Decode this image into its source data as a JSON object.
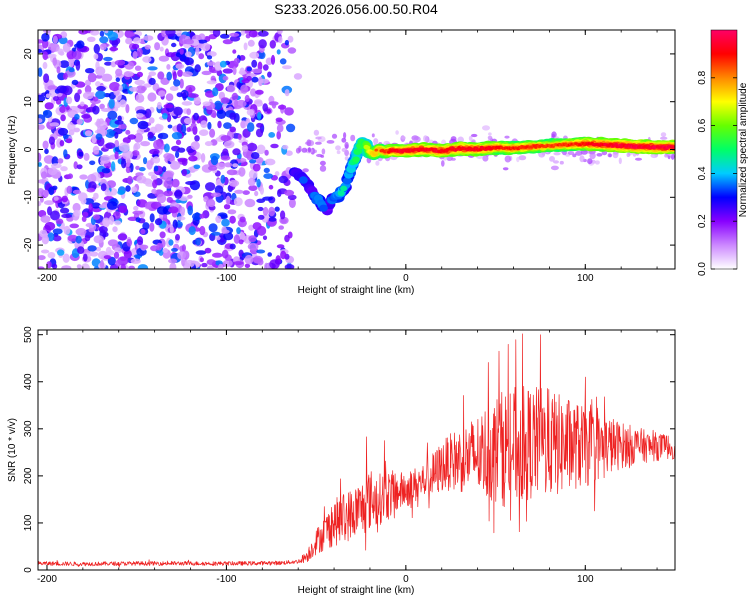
{
  "title": "S233.2026.056.00.50.R04",
  "chart_data": [
    {
      "type": "heatmap",
      "name": "spectrogram",
      "xlabel": "Height of straight line (km)",
      "ylabel": "Frequency (Hz)",
      "xlim": [
        -205,
        150
      ],
      "ylim": [
        -25,
        25
      ],
      "xticks": [
        -200,
        -100,
        0,
        100
      ],
      "xtick_labels": [
        "-200",
        "-100",
        "0",
        "100"
      ],
      "yticks": [
        -20,
        -10,
        0,
        10,
        20
      ],
      "ytick_labels": [
        "-20",
        "-10",
        "0",
        "10",
        "20"
      ],
      "colorbar": {
        "label": "Normalized spectral amplitude",
        "range": [
          0,
          1
        ],
        "ticks": [
          0,
          0.2,
          0.4,
          0.6,
          0.8
        ],
        "tick_labels": [
          "0.0",
          "0.2",
          "0.4",
          "0.6",
          "0.8"
        ],
        "colors": [
          "#ffffff",
          "#cc88ff",
          "#8800ff",
          "#0000ff",
          "#00ccff",
          "#00ff66",
          "#66ff00",
          "#ffff00",
          "#ff8800",
          "#ff0000",
          "#ff0066"
        ]
      },
      "noise_region_x": [
        -205,
        -60
      ],
      "signal_track": {
        "x": [
          -62,
          -58,
          -55,
          -52,
          -50,
          -48,
          -46,
          -44,
          -42,
          -40,
          -38,
          -36,
          -34,
          -32,
          -30,
          -28,
          -26,
          -24,
          -22,
          -20,
          -18,
          -15,
          -12,
          -8,
          -4,
          0,
          10,
          20,
          30,
          40,
          50,
          60,
          70,
          80,
          90,
          100,
          110,
          120,
          130,
          140,
          150
        ],
        "frequency": [
          -4.5,
          -6,
          -7,
          -9,
          -10,
          -11,
          -12,
          -12.5,
          -11,
          -10,
          -9.5,
          -9,
          -8,
          -6,
          -3.5,
          -2,
          0.5,
          1.5,
          0.5,
          -0.5,
          -1,
          0,
          -0.5,
          -0.2,
          -0.3,
          -0.2,
          0,
          -0.3,
          0.2,
          0.1,
          0.4,
          0.3,
          0.6,
          0.8,
          1.0,
          1.2,
          1.0,
          0.8,
          0.6,
          0.5,
          0.5
        ],
        "amplitude": [
          0.25,
          0.3,
          0.3,
          0.25,
          0.35,
          0.4,
          0.3,
          0.25,
          0.3,
          0.35,
          0.4,
          0.45,
          0.35,
          0.4,
          0.45,
          0.5,
          0.55,
          0.55,
          0.6,
          0.7,
          0.75,
          0.8,
          0.85,
          0.9,
          0.95,
          0.95,
          0.95,
          0.95,
          0.95,
          0.95,
          0.9,
          0.85,
          0.85,
          0.8,
          0.85,
          0.9,
          0.95,
          1.0,
          1.0,
          1.0,
          1.0
        ]
      }
    },
    {
      "type": "line",
      "name": "snr",
      "xlabel": "Height of straight line (km)",
      "ylabel": "SNR (10 * v/v)",
      "xlim": [
        -205,
        150
      ],
      "ylim": [
        0,
        510
      ],
      "xticks": [
        -200,
        -100,
        0,
        100
      ],
      "xtick_labels": [
        "-200",
        "-100",
        "0",
        "100"
      ],
      "yticks": [
        0,
        100,
        200,
        300,
        400,
        500
      ],
      "ytick_labels": [
        "0",
        "100",
        "200",
        "300",
        "400",
        "500"
      ],
      "color": "#ee2222",
      "series": [
        {
          "name": "SNR",
          "x": [
            -205,
            -180,
            -150,
            -120,
            -90,
            -70,
            -60,
            -55,
            -50,
            -45,
            -40,
            -35,
            -30,
            -25,
            -20,
            -15,
            -10,
            -5,
            0,
            5,
            10,
            15,
            20,
            25,
            30,
            35,
            40,
            45,
            50,
            55,
            60,
            65,
            70,
            75,
            80,
            85,
            90,
            95,
            100,
            105,
            110,
            115,
            120,
            125,
            130,
            135,
            140,
            145,
            150
          ],
          "mean": [
            14,
            13,
            14,
            14,
            14,
            15,
            18,
            30,
            60,
            80,
            100,
            110,
            120,
            130,
            150,
            150,
            160,
            165,
            170,
            180,
            190,
            200,
            220,
            230,
            235,
            240,
            245,
            250,
            255,
            260,
            265,
            265,
            270,
            270,
            270,
            265,
            265,
            265,
            260,
            260,
            265,
            265,
            265,
            265,
            265,
            262,
            262,
            262,
            260
          ],
          "spread": [
            8,
            8,
            8,
            8,
            8,
            8,
            8,
            25,
            50,
            70,
            90,
            100,
            100,
            110,
            120,
            100,
            100,
            80,
            70,
            70,
            70,
            90,
            100,
            110,
            130,
            140,
            160,
            190,
            210,
            230,
            230,
            230,
            220,
            220,
            210,
            200,
            190,
            170,
            160,
            140,
            120,
            110,
            90,
            80,
            70,
            60,
            55,
            50,
            45
          ],
          "peaks": [
            [
              65,
              502
            ],
            [
              75,
              500
            ],
            [
              52,
              465
            ],
            [
              100,
              410
            ],
            [
              -22,
              283
            ],
            [
              -12,
              275
            ],
            [
              12,
              270
            ]
          ]
        }
      ]
    }
  ]
}
